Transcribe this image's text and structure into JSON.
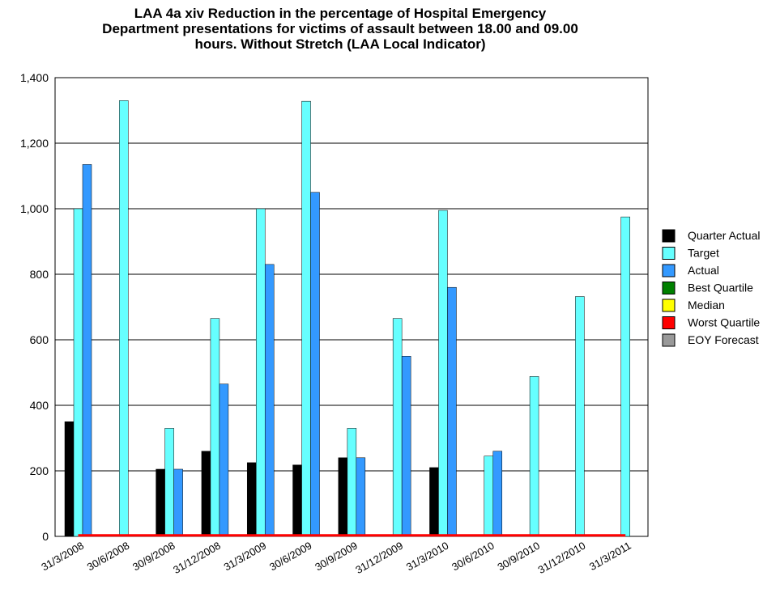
{
  "chart_data": {
    "type": "bar",
    "title": [
      "LAA 4a xiv Reduction in the percentage of Hospital Emergency",
      "Department presentations for victims of assault between 18.00 and 09.00",
      "hours. Without Stretch (LAA Local Indicator)"
    ],
    "categories": [
      "31/3/2008",
      "30/6/2008",
      "30/9/2008",
      "31/12/2008",
      "31/3/2009",
      "30/6/2009",
      "30/9/2009",
      "31/12/2009",
      "31/3/2010",
      "30/6/2010",
      "30/9/2010",
      "31/12/2010",
      "31/3/2011"
    ],
    "series": [
      {
        "name": "Quarter Actual",
        "color": "#000000",
        "type": "bar",
        "values": [
          350,
          null,
          205,
          260,
          225,
          218,
          240,
          null,
          210,
          null,
          null,
          null,
          null
        ]
      },
      {
        "name": "Target",
        "color": "#66ffff",
        "type": "bar",
        "values": [
          1000,
          1330,
          330,
          665,
          1000,
          1328,
          330,
          665,
          995,
          245,
          488,
          732,
          975
        ]
      },
      {
        "name": "Actual",
        "color": "#3399ff",
        "type": "bar",
        "values": [
          1135,
          null,
          205,
          465,
          830,
          1050,
          240,
          550,
          760,
          260,
          null,
          null,
          null
        ]
      },
      {
        "name": "Best Quartile",
        "color": "#008000",
        "type": "line",
        "values": [
          null,
          null,
          null,
          null,
          null,
          null,
          null,
          null,
          null,
          null,
          null,
          null,
          null
        ]
      },
      {
        "name": "Median",
        "color": "#ffff00",
        "type": "line",
        "values": [
          null,
          null,
          null,
          null,
          null,
          null,
          null,
          null,
          null,
          null,
          null,
          null,
          null
        ]
      },
      {
        "name": "Worst Quartile",
        "color": "#ff0000",
        "type": "line",
        "values": [
          3,
          3,
          3,
          3,
          3,
          3,
          3,
          3,
          3,
          3,
          3,
          3,
          3
        ]
      },
      {
        "name": "EOY Forecast",
        "color": "#999999",
        "type": "line",
        "values": [
          null,
          null,
          null,
          null,
          null,
          null,
          null,
          null,
          null,
          null,
          null,
          null,
          null
        ]
      }
    ],
    "ylim": [
      0,
      1400
    ],
    "yticks": [
      0,
      200,
      400,
      600,
      800,
      {
        "value": 1000,
        "label": "1,000"
      },
      {
        "value": 1200,
        "label": "1,200"
      },
      {
        "value": 1400,
        "label": "1,400"
      }
    ],
    "grid": true,
    "legend": "right"
  }
}
